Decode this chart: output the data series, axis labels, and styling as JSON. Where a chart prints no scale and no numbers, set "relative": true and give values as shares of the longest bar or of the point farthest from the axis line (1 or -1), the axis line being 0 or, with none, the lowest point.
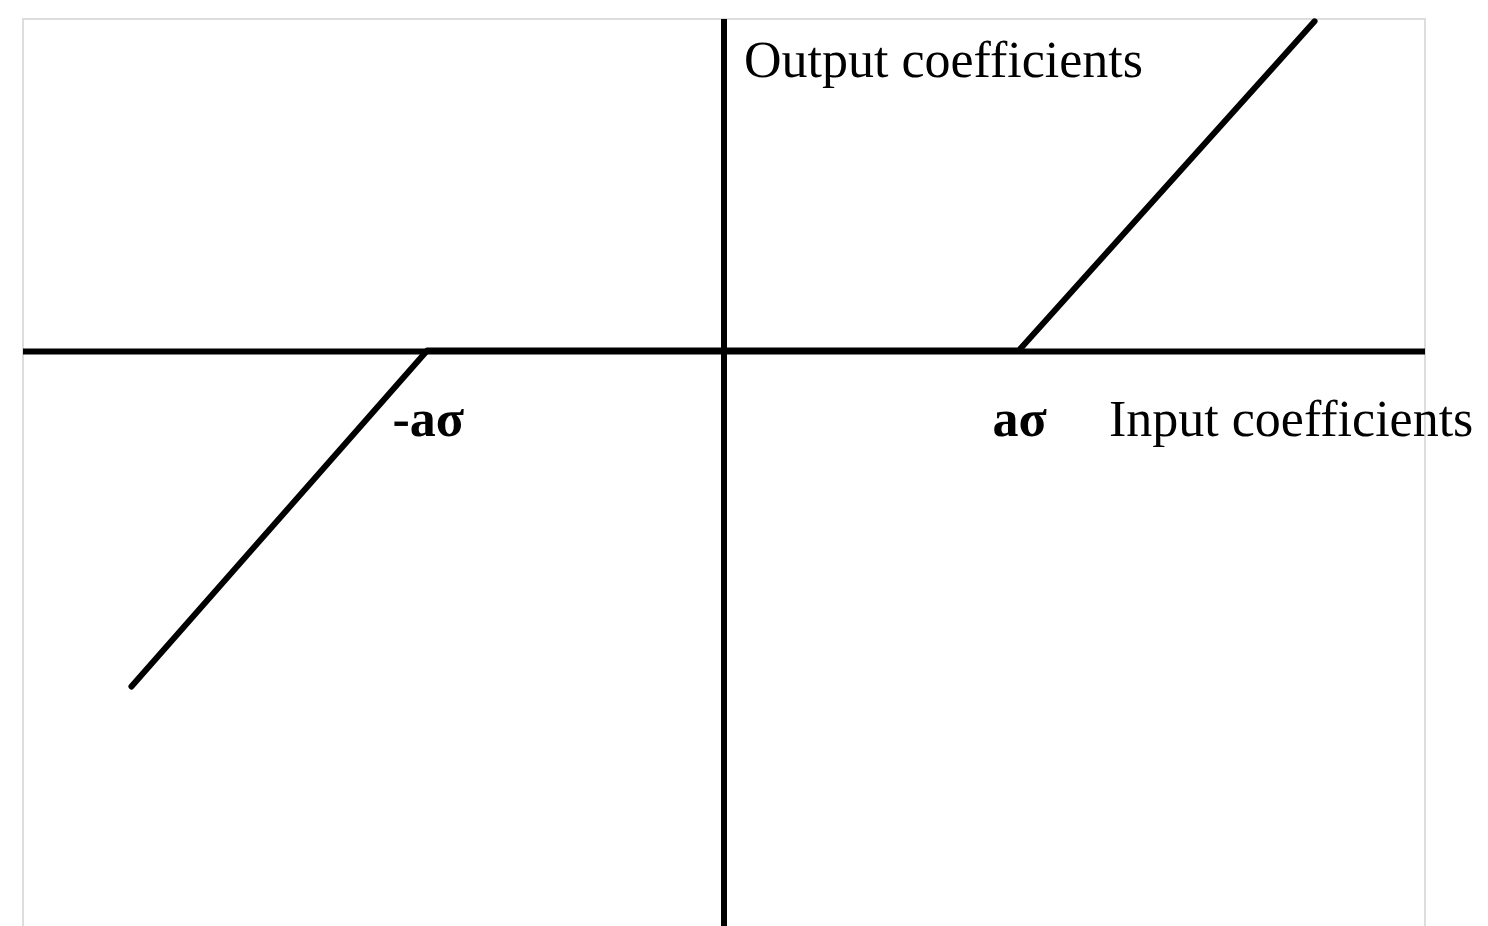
{
  "chart_data": {
    "type": "line",
    "xlabel": "Input coefficients",
    "ylabel": "Output coefficients",
    "categories": [
      null,
      "-aσ",
      null,
      "aσ",
      null
    ],
    "values": [
      -1,
      0,
      0,
      0,
      0.98
    ],
    "color": "#000000",
    "relative": true,
    "tick_labels": "x"
  }
}
